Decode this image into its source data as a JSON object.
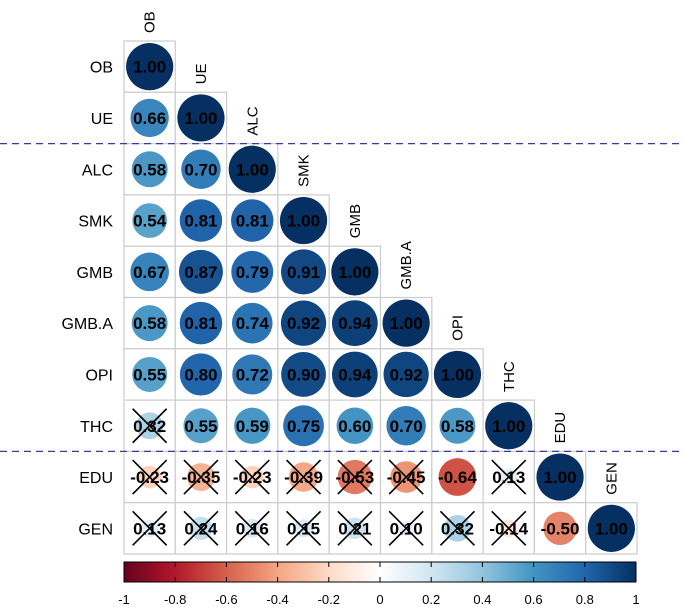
{
  "chart_data": {
    "type": "heatmap",
    "layout": "lower-triangle correlation matrix with circles; diagonal labels on top",
    "variables": [
      "OB",
      "UE",
      "ALC",
      "SMK",
      "GMB",
      "GMB.A",
      "OPI",
      "THC",
      "EDU",
      "GEN"
    ],
    "matrix": [
      [
        1.0
      ],
      [
        0.66,
        1.0
      ],
      [
        0.58,
        0.7,
        1.0
      ],
      [
        0.54,
        0.81,
        0.81,
        1.0
      ],
      [
        0.67,
        0.87,
        0.79,
        0.91,
        1.0
      ],
      [
        0.58,
        0.81,
        0.74,
        0.92,
        0.94,
        1.0
      ],
      [
        0.55,
        0.8,
        0.72,
        0.9,
        0.94,
        0.92,
        1.0
      ],
      [
        0.32,
        0.55,
        0.59,
        0.75,
        0.6,
        0.7,
        0.58,
        1.0
      ],
      [
        -0.23,
        -0.35,
        -0.23,
        -0.39,
        -0.53,
        -0.45,
        -0.64,
        0.13,
        1.0
      ],
      [
        0.13,
        0.24,
        0.16,
        0.15,
        0.21,
        0.1,
        0.32,
        -0.14,
        -0.5,
        1.0
      ]
    ],
    "labels": [
      [
        "1.00"
      ],
      [
        "0.66",
        "1.00"
      ],
      [
        "0.58",
        "0.70",
        "1.00"
      ],
      [
        "0.54",
        "0.81",
        "0.81",
        "1.00"
      ],
      [
        "0.67",
        "0.87",
        "0.79",
        "0.91",
        "1.00"
      ],
      [
        "0.58",
        "0.81",
        "0.74",
        "0.92",
        "0.94",
        "1.00"
      ],
      [
        "0.55",
        "0.80",
        "0.72",
        "0.90",
        "0.94",
        "0.92",
        "1.00"
      ],
      [
        "0.32",
        "0.55",
        "0.59",
        "0.75",
        "0.60",
        "0.70",
        "0.58",
        "1.00"
      ],
      [
        "-0.23",
        "-0.35",
        "-0.23",
        "-0.39",
        "-0.53",
        "-0.45",
        "-0.64",
        "0.13",
        "1.00"
      ],
      [
        "0.13",
        "0.24",
        "0.16",
        "0.15",
        "0.21",
        "0.10",
        "0.32",
        "-0.14",
        "-0.50",
        "1.00"
      ]
    ],
    "crossed": [
      [
        false
      ],
      [
        false,
        false
      ],
      [
        false,
        false,
        false
      ],
      [
        false,
        false,
        false,
        false
      ],
      [
        false,
        false,
        false,
        false,
        false
      ],
      [
        false,
        false,
        false,
        false,
        false,
        false
      ],
      [
        false,
        false,
        false,
        false,
        false,
        false,
        false
      ],
      [
        true,
        false,
        false,
        false,
        false,
        false,
        false,
        false
      ],
      [
        true,
        true,
        true,
        true,
        true,
        true,
        false,
        true,
        false
      ],
      [
        true,
        true,
        true,
        true,
        true,
        true,
        true,
        true,
        false,
        false
      ]
    ],
    "separators_after_rows": [
      "UE",
      "THC"
    ],
    "colorbar": {
      "range": [
        -1,
        1
      ],
      "ticks": [
        "-1",
        "-0.8",
        "-0.6",
        "-0.4",
        "-0.2",
        "0",
        "0.2",
        "0.4",
        "0.6",
        "0.8",
        "1"
      ],
      "colors": [
        "#67001F",
        "#B2182B",
        "#D6604D",
        "#F4A582",
        "#FDDBC7",
        "#FFFFFF",
        "#D1E5F0",
        "#92C5DE",
        "#4393C3",
        "#2166AC",
        "#053061"
      ]
    },
    "title": "",
    "xlabel": "",
    "ylabel": ""
  }
}
